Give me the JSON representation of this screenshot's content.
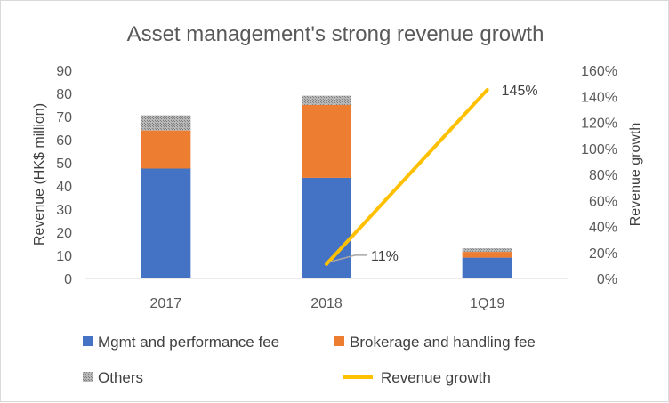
{
  "chart_data": {
    "type": "bar",
    "title": "Asset management's strong revenue growth",
    "categories": [
      "2017",
      "2018",
      "1Q19"
    ],
    "series": [
      {
        "name": "Mgmt and performance fee",
        "kind": "stacked-bar",
        "axis": "left",
        "color": "#4472C4",
        "values": [
          47.5,
          43.5,
          9
        ]
      },
      {
        "name": "Brokerage and handling fee",
        "kind": "stacked-bar",
        "axis": "left",
        "color": "#ED7D31",
        "values": [
          16.5,
          31.5,
          2.5
        ]
      },
      {
        "name": "Others",
        "kind": "stacked-bar",
        "axis": "left",
        "color": "#A5A5A5",
        "values": [
          6.5,
          4,
          1.5
        ]
      },
      {
        "name": "Revenue growth",
        "kind": "line",
        "axis": "right",
        "color": "#FFC000",
        "points": [
          {
            "category": "2018",
            "value": 11,
            "label": "11%"
          },
          {
            "category": "1Q19",
            "value": 145,
            "label": "145%"
          }
        ]
      }
    ],
    "ylabel": "Revenue (HK$ million)",
    "y2label": "Revenue growth",
    "ylim": [
      0,
      90
    ],
    "y2lim": [
      0,
      160
    ],
    "yticks": [
      "0",
      "10",
      "20",
      "30",
      "40",
      "50",
      "60",
      "70",
      "80",
      "90"
    ],
    "y2ticks": [
      "0%",
      "20%",
      "40%",
      "60%",
      "80%",
      "100%",
      "120%",
      "140%",
      "160%"
    ],
    "legend_position": "bottom"
  }
}
